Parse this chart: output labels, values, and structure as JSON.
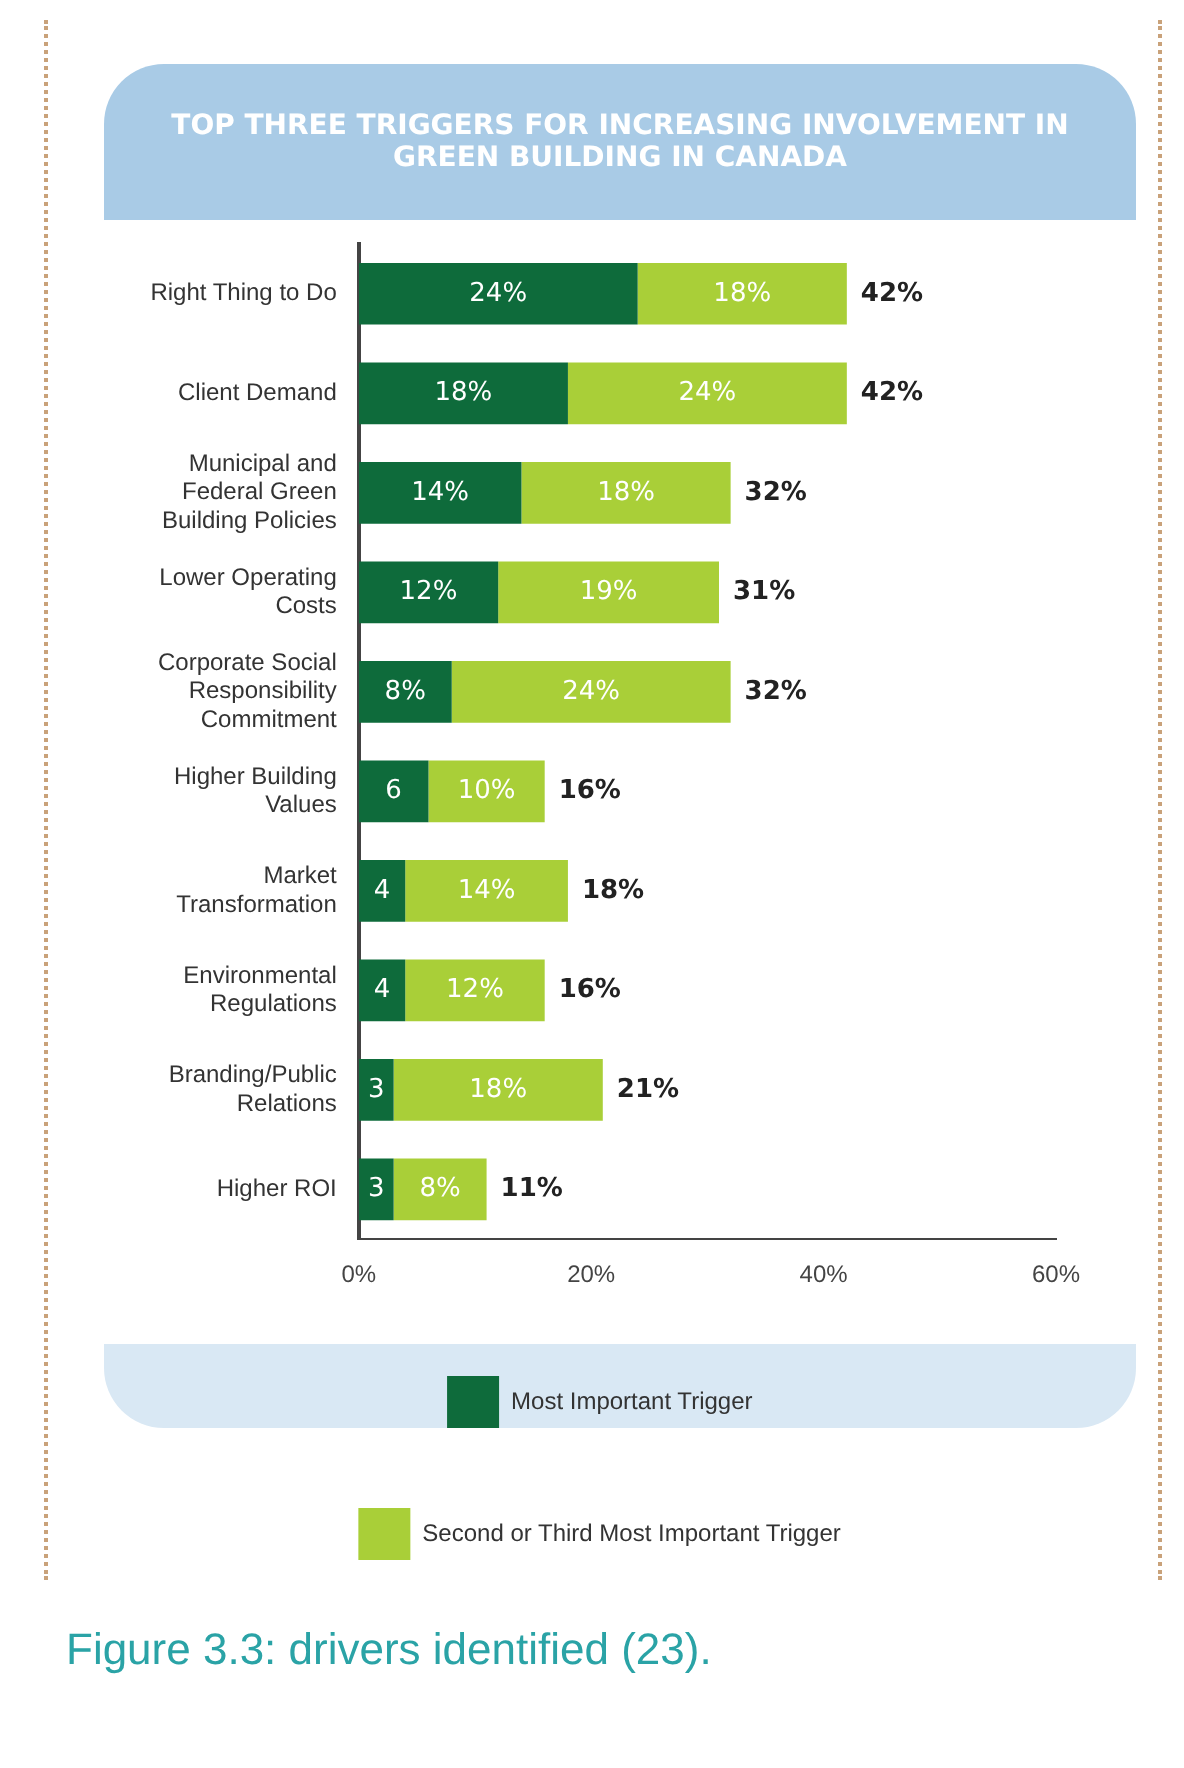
{
  "chart_data": {
    "type": "bar",
    "orientation": "horizontal",
    "stacked": true,
    "title": "TOP THREE TRIGGERS FOR INCREASING INVOLVEMENT IN GREEN BUILDING IN CANADA",
    "categories": [
      "Right Thing to Do",
      "Client Demand",
      "Municipal and Federal Green Building Policies",
      "Lower Operating Costs",
      "Corporate Social Responsibility Commitment",
      "Higher Building Values",
      "Market Transformation",
      "Environmental Regulations",
      "Branding/Public Relations",
      "Higher ROI"
    ],
    "series": [
      {
        "name": "Most Important Trigger",
        "color": "#0e6b3b",
        "values": [
          24,
          18,
          14,
          12,
          8,
          6,
          4,
          4,
          3,
          3
        ],
        "value_labels": [
          "24%",
          "18%",
          "14%",
          "12%",
          "8%",
          "6",
          "4",
          "4",
          "3",
          "3"
        ]
      },
      {
        "name": "Second or Third Most Important Trigger",
        "color": "#a9cf38",
        "values": [
          18,
          24,
          18,
          19,
          24,
          10,
          14,
          12,
          18,
          8
        ],
        "value_labels": [
          "18%",
          "24%",
          "18%",
          "19%",
          "24%",
          "10%",
          "14%",
          "12%",
          "18%",
          "8%"
        ]
      }
    ],
    "totals": [
      "42%",
      "42%",
      "32%",
      "31%",
      "32%",
      "16%",
      "18%",
      "16%",
      "21%",
      "11%"
    ],
    "xlim": [
      0,
      60
    ],
    "xticks": [
      {
        "value": 0,
        "label": "0%"
      },
      {
        "value": 20,
        "label": "20%"
      },
      {
        "value": 40,
        "label": "40%"
      },
      {
        "value": 60,
        "label": "60%"
      }
    ],
    "grid": false,
    "legend": "bottom",
    "annotations": [
      "Figure 3.3: drivers identified (23)."
    ]
  }
}
